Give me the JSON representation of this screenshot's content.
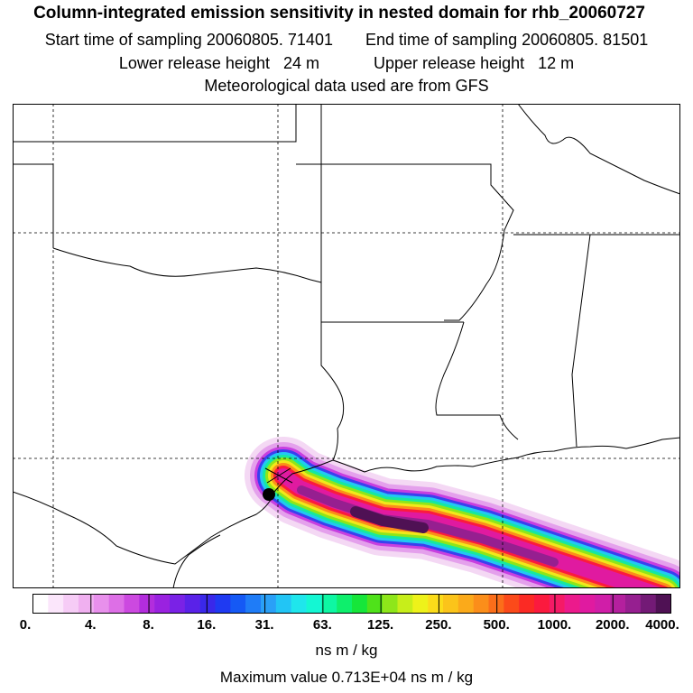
{
  "header": {
    "title": "Column-integrated emission sensitivity in nested domain for rhb_20060727",
    "start_label": "Start time of sampling 20060805. 71401",
    "end_label": "End time of sampling 20060805. 81501",
    "lower_label": "Lower release height   24 m",
    "upper_label": "Upper release height   12 m",
    "met_label": "Meteorological data used are from GFS"
  },
  "colorbar": {
    "ticks": [
      "0.",
      "4.",
      "8.",
      "16.",
      "31.",
      "63.",
      "125.",
      "250.",
      "500.",
      "1000.",
      "2000.",
      "4000."
    ],
    "unit": "ns m / kg",
    "colors": [
      "#ffffff",
      "#fbe6fb",
      "#f6ccf6",
      "#f0b0f0",
      "#e890ec",
      "#dd6fe6",
      "#cc49e0",
      "#b32ddd",
      "#9a22e0",
      "#7a22e6",
      "#5a22e8",
      "#3a28ea",
      "#1f3af2",
      "#1559f5",
      "#1f7cf7",
      "#2aa0f7",
      "#22c5f5",
      "#1fe6ec",
      "#14f7d3",
      "#0ef7a3",
      "#0eef6c",
      "#16e63a",
      "#4fe21a",
      "#8ee61a",
      "#c7ee1a",
      "#eef21a",
      "#fbdc1a",
      "#fbc41a",
      "#fbaa1a",
      "#fb8e1a",
      "#fb6e1a",
      "#fb4a1a",
      "#fb2a24",
      "#fb1a3e",
      "#f51a66",
      "#ec1a8c",
      "#e01aa0",
      "#d01ea8",
      "#b4209e",
      "#961f90",
      "#731a76",
      "#4f1154"
    ]
  },
  "footer": {
    "max_value": "Maximum value  0.713E+04 ns m / kg"
  }
}
